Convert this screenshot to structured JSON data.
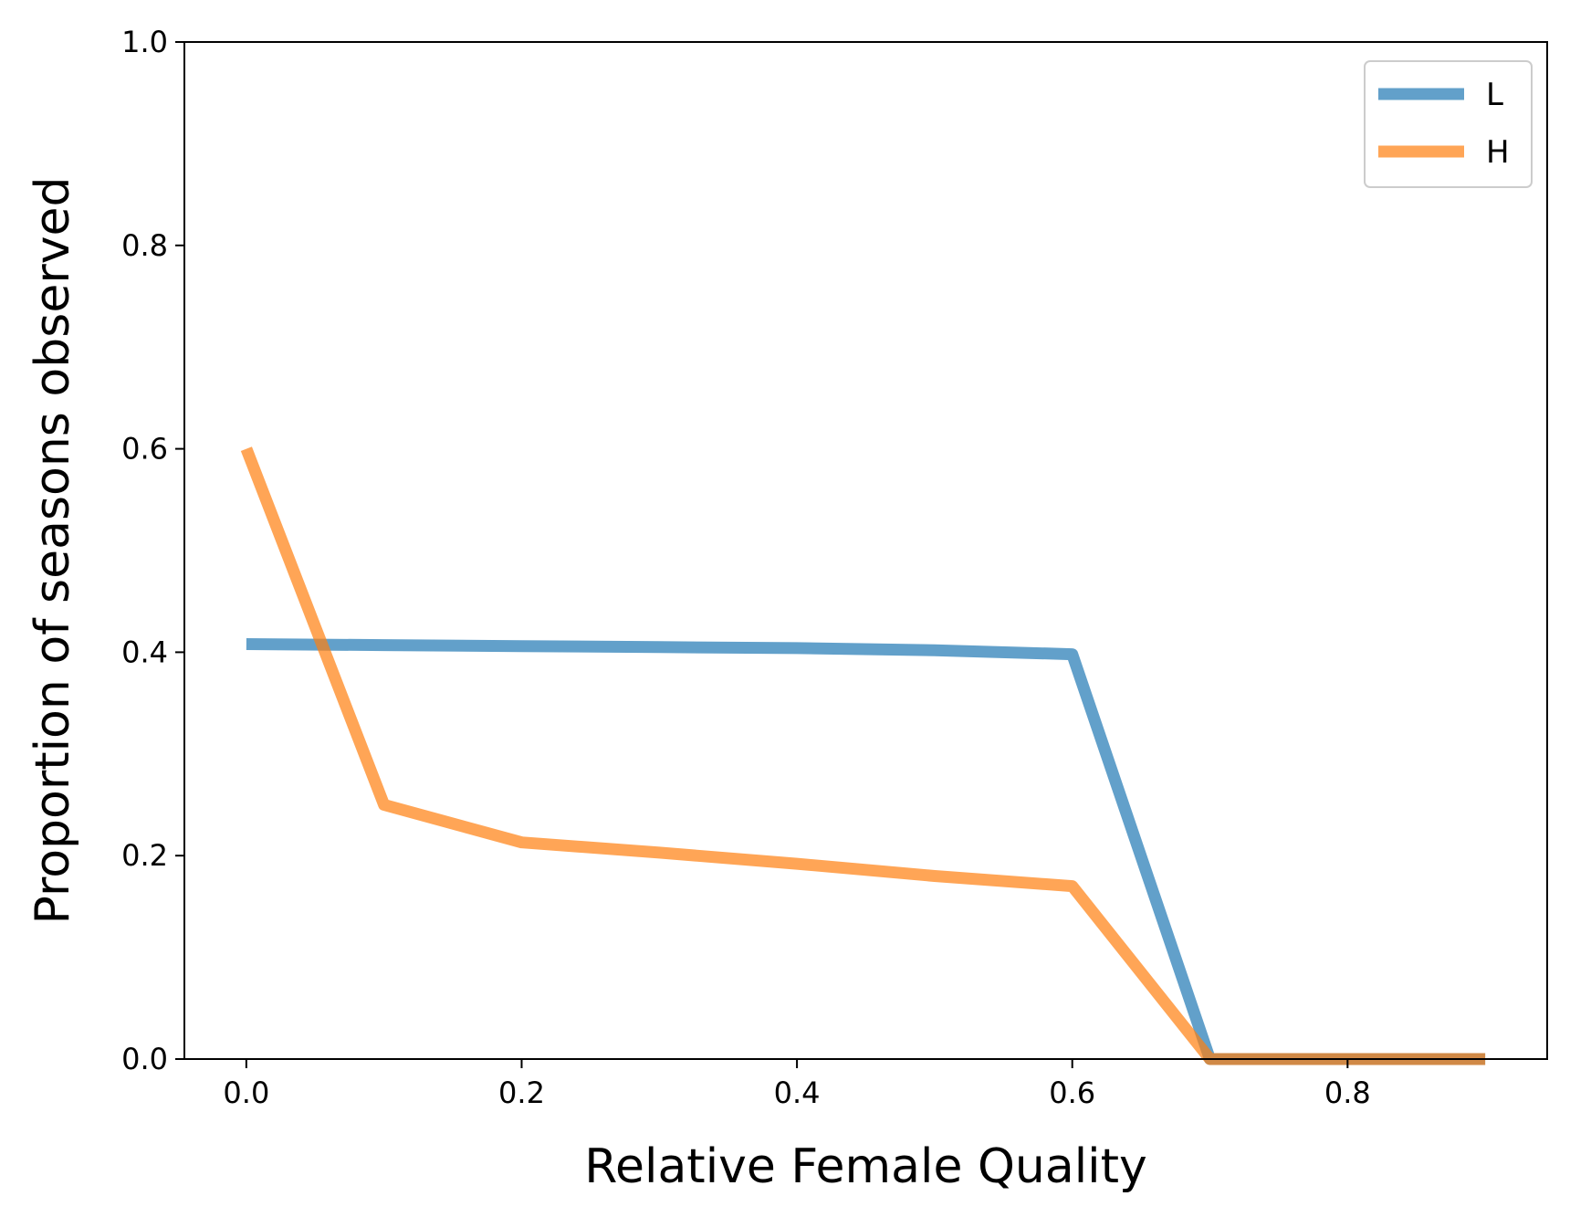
{
  "chart_data": {
    "type": "line",
    "title": "",
    "xlabel": "Relative Female Quality",
    "ylabel": "Proportion of seasons observed",
    "xlim": [
      -0.045,
      0.945
    ],
    "ylim": [
      0.0,
      1.0
    ],
    "xticks": [
      "0.0",
      "0.2",
      "0.4",
      "0.6",
      "0.8"
    ],
    "yticks": [
      "0.0",
      "0.2",
      "0.4",
      "0.6",
      "0.8",
      "1.0"
    ],
    "grid": false,
    "legend_position": "top-right",
    "x": [
      0.0,
      0.1,
      0.2,
      0.3,
      0.4,
      0.5,
      0.6,
      0.7,
      0.8,
      0.9
    ],
    "series": [
      {
        "name": "L",
        "color": "#1f77b4",
        "values": [
          0.408,
          0.407,
          0.406,
          0.405,
          0.404,
          0.402,
          0.398,
          0.0,
          0.0,
          0.0
        ]
      },
      {
        "name": "H",
        "color": "#ff7f0e",
        "values": [
          0.6,
          0.25,
          0.213,
          0.203,
          0.192,
          0.18,
          0.17,
          0.0,
          0.0,
          0.0
        ]
      }
    ]
  }
}
